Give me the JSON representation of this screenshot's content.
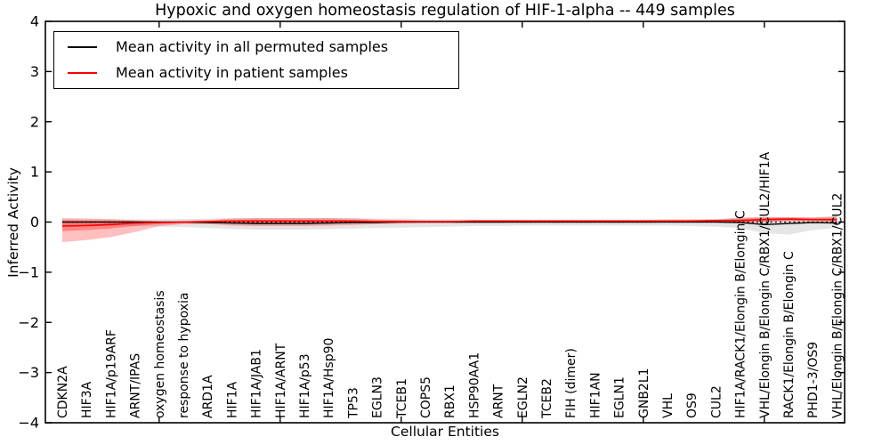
{
  "chart_data": {
    "type": "line",
    "title": "Hypoxic and oxygen homeostasis regulation of HIF-1-alpha -- 449 samples",
    "xlabel": "Cellular Entities",
    "ylabel": "Inferred Activity",
    "ylim": [
      -4,
      4
    ],
    "yticks": [
      4,
      3,
      2,
      1,
      0,
      -1,
      -2,
      -3,
      -4
    ],
    "x_major_tick_indices": [
      4,
      9,
      14,
      19,
      24,
      29
    ],
    "grid": false,
    "legend_position": "upper left",
    "x_tick_label_rotation": 90,
    "categories": [
      "CDKN2A",
      "HIF3A",
      "HIF1A/p19ARF",
      "ARNT/IPAS",
      "oxygen homeostasis",
      "response to hypoxia",
      "ARD1A",
      "HIF1A",
      "HIF1A/JAB1",
      "HIF1A/ARNT",
      "HIF1A/p53",
      "HIF1A/Hsp90",
      "TP53",
      "EGLN3",
      "TCEB1",
      "COPS5",
      "RBX1",
      "HSP90AA1",
      "ARNT",
      "EGLN2",
      "TCEB2",
      "FIH (dimer)",
      "HIF1AN",
      "EGLN1",
      "GNB2L1",
      "VHL",
      "OS9",
      "CUL2",
      "HIF1A/RACK1/Elongin B/Elongin C",
      "VHL/Elongin B/Elongin C/RBX1/CUL2/HIF1A",
      "RACK1/Elongin B/Elongin C",
      "PHD1-3/OS9",
      "VHL/Elongin B/Elongin C/RBX1/CUL2"
    ],
    "series": [
      {
        "name": "Mean activity in all permuted samples",
        "color": "#000000",
        "style": "solid",
        "values": [
          0,
          0,
          0,
          0,
          0,
          0,
          -0.01,
          -0.02,
          -0.03,
          -0.03,
          -0.03,
          -0.02,
          -0.01,
          -0.01,
          0,
          0,
          0,
          0,
          0,
          0,
          0,
          0,
          0,
          0,
          0,
          0,
          0,
          0,
          -0.01,
          -0.05,
          -0.03,
          -0.01,
          -0.02
        ]
      },
      {
        "name": "Mean activity in patient samples",
        "color": "#ff0000",
        "style": "solid",
        "values": [
          -0.08,
          -0.07,
          -0.05,
          -0.02,
          -0.01,
          0,
          0.01,
          0.02,
          0.02,
          0.02,
          0.02,
          0.02,
          0.02,
          0.01,
          0.01,
          0.01,
          0.01,
          0.02,
          0.02,
          0.02,
          0.02,
          0.02,
          0.02,
          0.02,
          0.02,
          0.02,
          0.02,
          0.03,
          0.03,
          0.05,
          0.06,
          0.05,
          0.05
        ]
      }
    ],
    "reference_line": {
      "value": 0,
      "color": "#000000",
      "style": "dotted"
    },
    "bands": [
      {
        "name": "permuted-sample-range",
        "color": "#000000",
        "opacity": 0.1,
        "upper": [
          0.05,
          0.05,
          0.05,
          0.05,
          0.06,
          0.06,
          0.07,
          0.08,
          0.08,
          0.08,
          0.08,
          0.08,
          0.08,
          0.07,
          0.07,
          0.06,
          0.06,
          0.05,
          0.05,
          0.05,
          0.05,
          0.05,
          0.05,
          0.05,
          0.05,
          0.05,
          0.05,
          0.06,
          0.08,
          0.1,
          0.1,
          0.09,
          0.12
        ],
        "lower": [
          -0.07,
          -0.08,
          -0.08,
          -0.08,
          -0.09,
          -0.1,
          -0.12,
          -0.14,
          -0.15,
          -0.15,
          -0.15,
          -0.14,
          -0.13,
          -0.12,
          -0.11,
          -0.1,
          -0.09,
          -0.08,
          -0.08,
          -0.07,
          -0.07,
          -0.07,
          -0.07,
          -0.07,
          -0.07,
          -0.07,
          -0.08,
          -0.09,
          -0.12,
          -0.22,
          -0.25,
          -0.16,
          -0.12
        ]
      },
      {
        "name": "patient-sample-range-outer",
        "color": "#ff0000",
        "opacity": 0.25,
        "upper": [
          0.08,
          0.07,
          0.06,
          0.04,
          0.02,
          0.02,
          0.04,
          0.07,
          0.08,
          0.08,
          0.08,
          0.08,
          0.07,
          0.05,
          0.04,
          0.03,
          0.03,
          0.04,
          0.04,
          0.04,
          0.04,
          0.04,
          0.04,
          0.04,
          0.04,
          0.05,
          0.05,
          0.05,
          0.09,
          0.1,
          0.1,
          0.09,
          0.11
        ],
        "lower": [
          -0.4,
          -0.36,
          -0.3,
          -0.2,
          -0.08,
          -0.04,
          -0.04,
          -0.07,
          -0.08,
          -0.08,
          -0.08,
          -0.07,
          -0.06,
          -0.04,
          -0.03,
          -0.02,
          -0.02,
          -0.02,
          -0.02,
          -0.02,
          -0.02,
          -0.02,
          -0.02,
          -0.02,
          -0.02,
          -0.01,
          -0.01,
          -0.01,
          -0.02,
          0.0,
          0.01,
          0.01,
          -0.01
        ]
      },
      {
        "name": "patient-sample-range-inner",
        "color": "#ff0000",
        "opacity": 0.3,
        "upper": [
          0.04,
          0.03,
          0.03,
          0.02,
          0.01,
          0.01,
          0.02,
          0.04,
          0.05,
          0.05,
          0.05,
          0.05,
          0.04,
          0.03,
          0.03,
          0.02,
          0.02,
          0.03,
          0.03,
          0.03,
          0.03,
          0.03,
          0.03,
          0.03,
          0.03,
          0.03,
          0.03,
          0.04,
          0.06,
          0.08,
          0.08,
          0.07,
          0.08
        ],
        "lower": [
          -0.18,
          -0.16,
          -0.13,
          -0.08,
          -0.04,
          -0.02,
          -0.02,
          -0.03,
          -0.04,
          -0.04,
          -0.04,
          -0.03,
          -0.02,
          -0.01,
          -0.01,
          -0.01,
          -0.01,
          -0.01,
          -0.01,
          0.0,
          0.0,
          0.0,
          0.0,
          0.0,
          0.0,
          0.0,
          0.01,
          0.01,
          0.0,
          0.02,
          0.03,
          0.03,
          0.02
        ]
      }
    ]
  }
}
